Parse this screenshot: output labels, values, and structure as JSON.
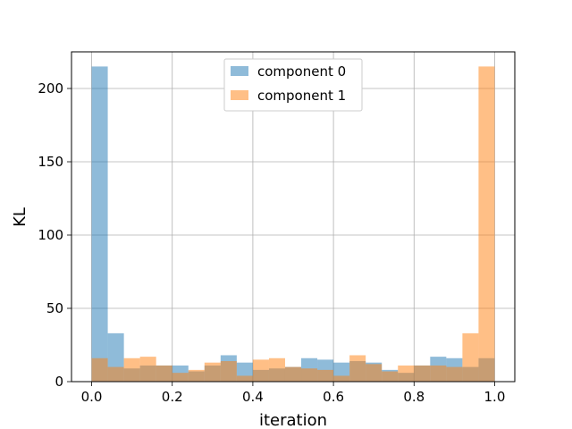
{
  "chart_data": {
    "type": "bar",
    "xlabel": "iteration",
    "ylabel": "KL",
    "xlim": [
      -0.05,
      1.05
    ],
    "ylim": [
      0,
      225
    ],
    "grid": true,
    "legend_position": "top-center",
    "bin_edges": [
      0.0,
      0.04,
      0.08,
      0.12,
      0.16,
      0.2,
      0.24,
      0.28,
      0.32,
      0.36,
      0.4,
      0.44,
      0.48,
      0.52,
      0.56,
      0.6,
      0.64,
      0.68,
      0.72,
      0.76,
      0.8,
      0.84,
      0.88,
      0.92,
      0.96,
      1.0
    ],
    "x_ticks": [
      "0.0",
      "0.2",
      "0.4",
      "0.6",
      "0.8",
      "1.0"
    ],
    "y_ticks": [
      "0",
      "50",
      "100",
      "150",
      "200"
    ],
    "series": [
      {
        "name": "component 0",
        "color": "#1f77b4",
        "opacity": 0.5,
        "values": [
          215,
          33,
          9,
          11,
          11,
          11,
          7,
          11,
          18,
          13,
          8,
          9,
          10,
          16,
          15,
          13,
          14,
          13,
          8,
          6,
          11,
          17,
          16,
          10,
          16
        ]
      },
      {
        "name": "component 1",
        "color": "#ff7f0e",
        "opacity": 0.5,
        "values": [
          16,
          10,
          16,
          17,
          11,
          6,
          8,
          13,
          14,
          4,
          15,
          16,
          10,
          9,
          8,
          4,
          18,
          12,
          7,
          11,
          11,
          11,
          10,
          33,
          215
        ]
      }
    ]
  }
}
